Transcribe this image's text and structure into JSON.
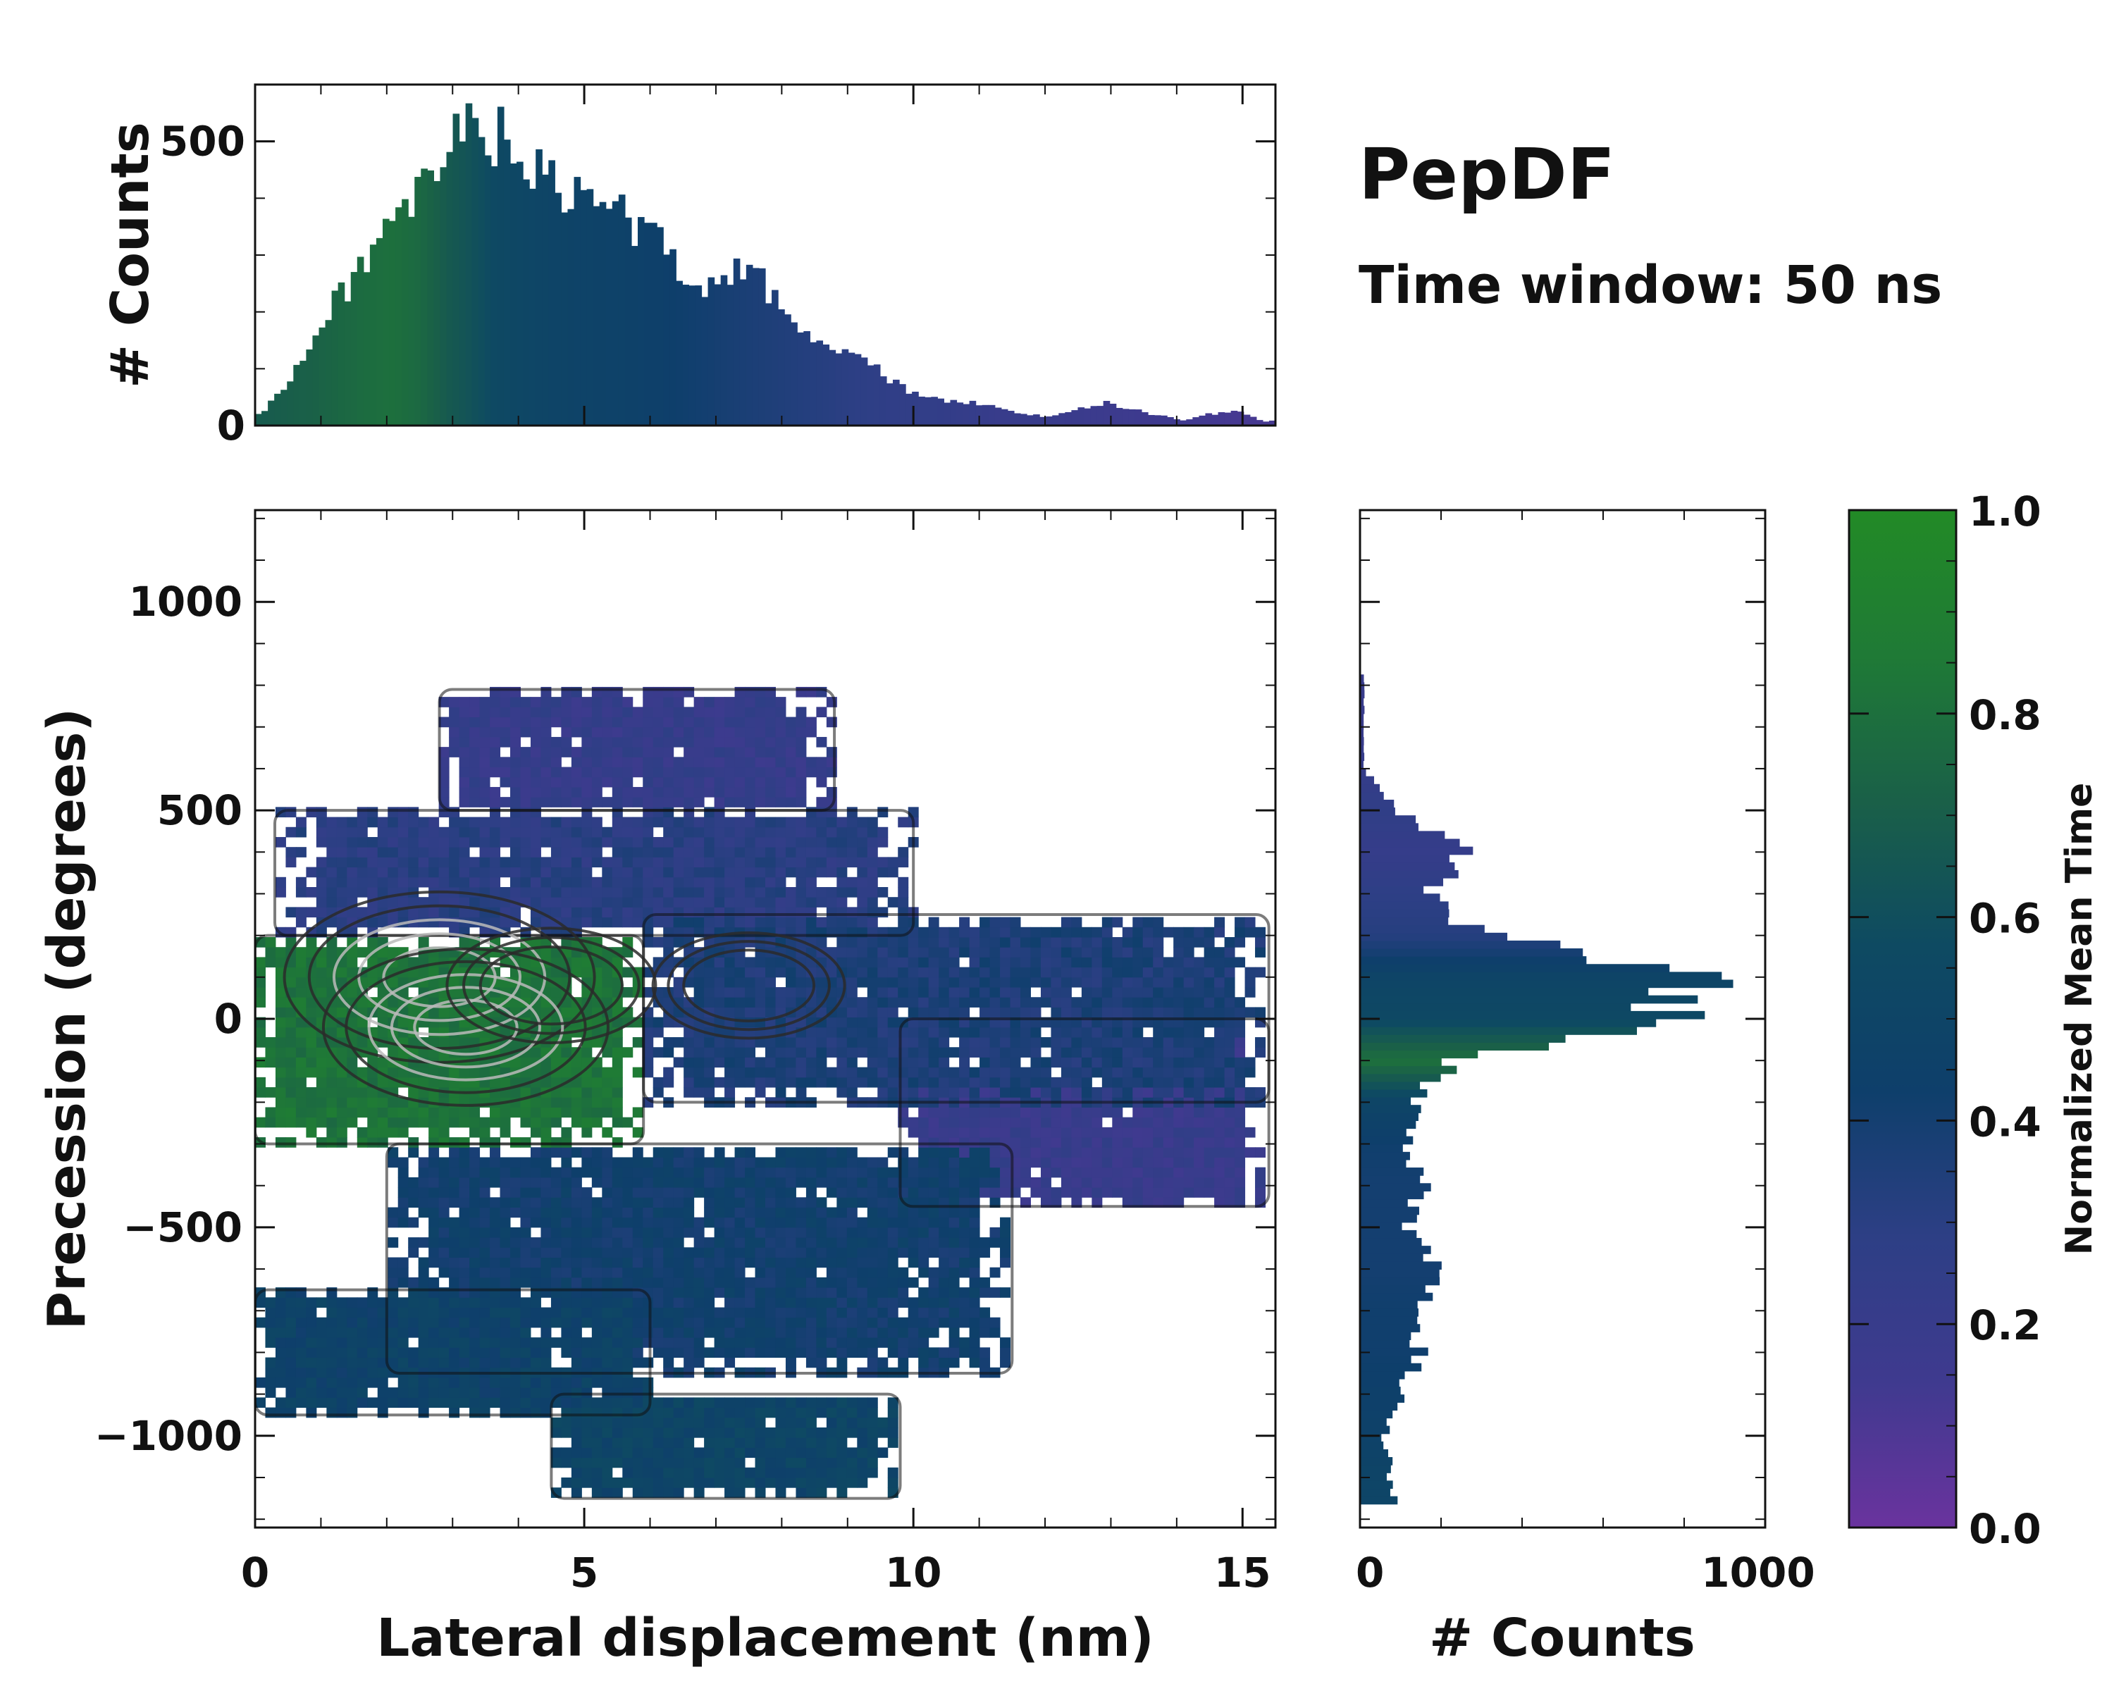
{
  "title": "PepDF",
  "subtitle": "Time window: 50 ns",
  "colors": {
    "colormap": [
      "#6a339e",
      "#3f3a8f",
      "#2d3f85",
      "#0e3f6b",
      "#0e4a62",
      "#1a6048",
      "#1f7a36",
      "#228a26"
    ],
    "contour_outer": "#111111",
    "contour_inner_dark": "#2a2a2a",
    "contour_inner_light": "#bbbbbb"
  },
  "chart_data": [
    {
      "id": "top-histogram",
      "type": "bar",
      "orientation": "vertical",
      "xlabel": "",
      "ylabel": "# Counts",
      "xlim": [
        0,
        15.5
      ],
      "ylim": [
        0,
        600
      ],
      "yticks": [
        0,
        500
      ],
      "ytick_labels": [
        "0",
        "500"
      ],
      "grid": false,
      "x": [
        0.1,
        0.5,
        0.9,
        1.3,
        1.7,
        2.1,
        2.5,
        2.9,
        3.3,
        3.7,
        4.1,
        4.5,
        4.9,
        5.3,
        5.7,
        6.1,
        6.5,
        6.9,
        7.3,
        7.7,
        8.1,
        8.5,
        8.9,
        9.3,
        9.7,
        10.1,
        10.5,
        10.9,
        11.3,
        11.7,
        12.1,
        12.5,
        12.9,
        13.3,
        13.7,
        14.1,
        14.5,
        14.9,
        15.3
      ],
      "values": [
        20,
        80,
        150,
        230,
        300,
        340,
        400,
        480,
        530,
        510,
        460,
        420,
        400,
        390,
        360,
        330,
        270,
        250,
        280,
        250,
        200,
        150,
        130,
        110,
        75,
        50,
        45,
        40,
        30,
        20,
        15,
        30,
        40,
        30,
        18,
        10,
        20,
        25,
        8
      ],
      "color_values": [
        0.68,
        0.7,
        0.72,
        0.75,
        0.78,
        0.8,
        0.76,
        0.68,
        0.62,
        0.55,
        0.52,
        0.5,
        0.48,
        0.47,
        0.46,
        0.44,
        0.42,
        0.4,
        0.38,
        0.36,
        0.34,
        0.32,
        0.3,
        0.28,
        0.26,
        0.25,
        0.24,
        0.22,
        0.2,
        0.2,
        0.19,
        0.18,
        0.17,
        0.16,
        0.15,
        0.14,
        0.13,
        0.12,
        0.12
      ]
    },
    {
      "id": "main-heatmap",
      "type": "heatmap",
      "xlabel": "Lateral displacement (nm)",
      "ylabel": "Precession (degrees)",
      "xlim": [
        0,
        15.5
      ],
      "ylim": [
        -1220,
        1220
      ],
      "xticks": [
        0,
        5,
        10,
        15
      ],
      "xtick_labels": [
        "0",
        "5",
        "10",
        "15"
      ],
      "yticks": [
        -1000,
        -500,
        0,
        500,
        1000
      ],
      "ytick_labels": [
        "−1000",
        "−500",
        "0",
        "500",
        "1000"
      ],
      "grid": false,
      "regions": [
        {
          "name": "core-green",
          "x": [
            0,
            5.9
          ],
          "y": [
            -300,
            200
          ],
          "value": 0.82
        },
        {
          "name": "upper-band",
          "x": [
            0.3,
            10
          ],
          "y": [
            200,
            500
          ],
          "value": 0.3
        },
        {
          "name": "top-arc",
          "x": [
            2.8,
            8.8
          ],
          "y": [
            500,
            790
          ],
          "value": 0.22
        },
        {
          "name": "middle-right",
          "x": [
            5.9,
            15.4
          ],
          "y": [
            -200,
            250
          ],
          "value": 0.36
        },
        {
          "name": "far-right-arm",
          "x": [
            9.8,
            15.4
          ],
          "y": [
            -450,
            0
          ],
          "value": 0.2
        },
        {
          "name": "lower-center",
          "x": [
            2,
            11.5
          ],
          "y": [
            -850,
            -300
          ],
          "value": 0.42
        },
        {
          "name": "lower-left",
          "x": [
            0,
            6
          ],
          "y": [
            -950,
            -650
          ],
          "value": 0.47
        },
        {
          "name": "bottom-lobe",
          "x": [
            4.5,
            9.8
          ],
          "y": [
            -1150,
            -900
          ],
          "value": 0.5
        }
      ],
      "density_peaks": [
        {
          "x": 2.8,
          "y": 100,
          "weight": 1.0
        },
        {
          "x": 3.2,
          "y": -20,
          "weight": 0.85
        },
        {
          "x": 4.5,
          "y": 80,
          "weight": 0.4
        },
        {
          "x": 7.5,
          "y": 80,
          "weight": 0.3
        }
      ]
    },
    {
      "id": "right-histogram",
      "type": "bar",
      "orientation": "horizontal",
      "xlabel": "# Counts",
      "ylabel": "",
      "xlim": [
        0,
        1000
      ],
      "ylim": [
        -1220,
        1220
      ],
      "xticks": [
        0,
        1000
      ],
      "xtick_labels": [
        "0",
        "1000"
      ],
      "grid": false,
      "y": [
        -1100,
        -1000,
        -900,
        -800,
        -700,
        -600,
        -500,
        -400,
        -300,
        -200,
        -100,
        0,
        100,
        200,
        300,
        400,
        500,
        600,
        700,
        800
      ],
      "values": [
        80,
        60,
        100,
        150,
        140,
        180,
        120,
        150,
        120,
        130,
        230,
        760,
        880,
        300,
        180,
        250,
        100,
        10,
        10,
        10
      ],
      "color_values": [
        0.5,
        0.46,
        0.44,
        0.42,
        0.42,
        0.4,
        0.4,
        0.4,
        0.42,
        0.5,
        0.8,
        0.55,
        0.5,
        0.32,
        0.28,
        0.22,
        0.26,
        0.22,
        0.2,
        0.2
      ]
    },
    {
      "id": "colorbar",
      "type": "colorbar",
      "label": "Normalized Mean Time",
      "range": [
        0,
        1
      ],
      "ticks": [
        0,
        0.2,
        0.4,
        0.6,
        0.8,
        1.0
      ],
      "tick_labels": [
        "0.0",
        "0.2",
        "0.4",
        "0.6",
        "0.8",
        "1.0"
      ]
    }
  ]
}
